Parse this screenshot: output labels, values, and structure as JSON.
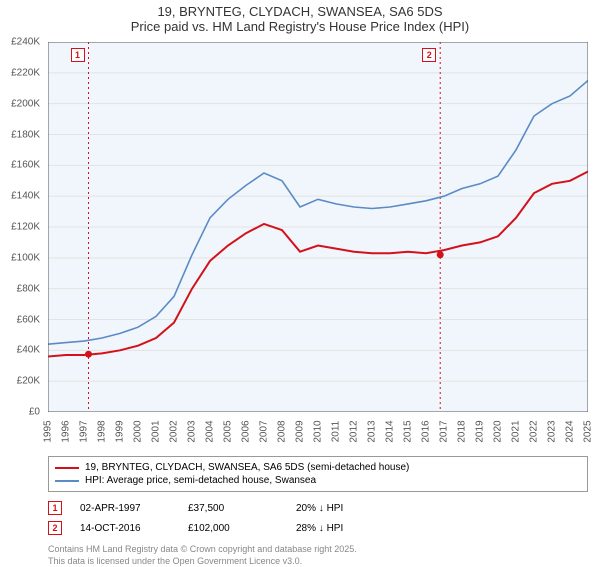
{
  "title": {
    "line1": "19, BRYNTEG, CLYDACH, SWANSEA, SA6 5DS",
    "line2": "Price paid vs. HM Land Registry's House Price Index (HPI)"
  },
  "chart": {
    "type": "line",
    "background_color": "#ffffff",
    "plot_fill": "#f0f6fb",
    "grid_color": "#e3e3e3",
    "axis_color": "#555555",
    "label_fontsize": 10,
    "ylim": [
      0,
      240000
    ],
    "ytick_step": 20000,
    "y_ticks": [
      "£0",
      "£20K",
      "£40K",
      "£60K",
      "£80K",
      "£100K",
      "£120K",
      "£140K",
      "£160K",
      "£180K",
      "£200K",
      "£220K",
      "£240K"
    ],
    "x_years": [
      1995,
      1996,
      1997,
      1998,
      1999,
      2000,
      2001,
      2002,
      2003,
      2004,
      2005,
      2006,
      2007,
      2008,
      2009,
      2010,
      2011,
      2012,
      2013,
      2014,
      2015,
      2016,
      2017,
      2018,
      2019,
      2020,
      2021,
      2022,
      2023,
      2024,
      2025
    ],
    "series": [
      {
        "name": "property",
        "label": "19, BRYNTEG, CLYDACH, SWANSEA, SA6 5DS (semi-detached house)",
        "color": "#d4111a",
        "line_width": 2,
        "y": [
          36,
          37,
          37,
          38,
          40,
          43,
          48,
          58,
          80,
          98,
          108,
          116,
          122,
          118,
          104,
          108,
          106,
          104,
          103,
          103,
          104,
          103,
          105,
          108,
          110,
          114,
          126,
          142,
          148,
          150,
          156
        ]
      },
      {
        "name": "hpi",
        "label": "HPI: Average price, semi-detached house, Swansea",
        "color": "#5b8bc4",
        "line_width": 1.6,
        "y": [
          44,
          45,
          46,
          48,
          51,
          55,
          62,
          75,
          102,
          126,
          138,
          147,
          155,
          150,
          133,
          138,
          135,
          133,
          132,
          133,
          135,
          137,
          140,
          145,
          148,
          153,
          170,
          192,
          200,
          205,
          215
        ]
      }
    ],
    "markers": [
      {
        "id": "1",
        "x_year": 1997.25,
        "y_value": 37500,
        "border_color": "#d4111a",
        "text_color": "#d4111a",
        "line_style": "dashed"
      },
      {
        "id": "2",
        "x_year": 2016.79,
        "y_value": 102000,
        "border_color": "#d4111a",
        "text_color": "#d4111a",
        "line_style": "dashed"
      }
    ]
  },
  "legend": {
    "rows": [
      {
        "color": "#d4111a",
        "text": "19, BRYNTEG, CLYDACH, SWANSEA, SA6 5DS (semi-detached house)"
      },
      {
        "color": "#5b8bc4",
        "text": "HPI: Average price, semi-detached house, Swansea"
      }
    ]
  },
  "data_points": [
    {
      "marker": "1",
      "border_color": "#d4111a",
      "date": "02-APR-1997",
      "price": "£37,500",
      "delta": "20% ↓ HPI"
    },
    {
      "marker": "2",
      "border_color": "#d4111a",
      "date": "14-OCT-2016",
      "price": "£102,000",
      "delta": "28% ↓ HPI"
    }
  ],
  "credits": {
    "line1": "Contains HM Land Registry data © Crown copyright and database right 2025.",
    "line2": "This data is licensed under the Open Government Licence v3.0."
  }
}
